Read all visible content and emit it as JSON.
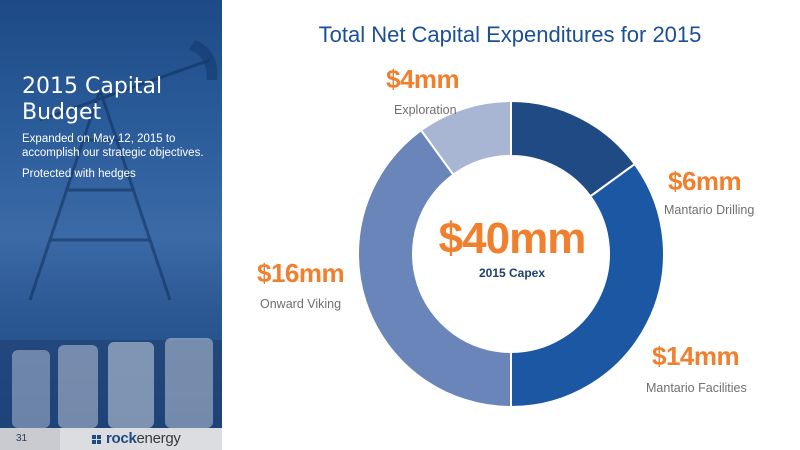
{
  "sidebar": {
    "title": "2015 Capital Budget",
    "bullets": [
      "Expanded on May 12, 2015 to accomplish our strategic objectives.",
      "Protected with hedges"
    ]
  },
  "footer": {
    "page_number": "31",
    "logo_part1": "rock",
    "logo_part2": "energy"
  },
  "colors": {
    "title": "#1b4f96",
    "value_labels": "#f07f2e",
    "category_labels": "#6f6f6f"
  },
  "chart_data": {
    "type": "pie",
    "variant": "donut",
    "title": "Total Net Capital Expenditures for 2015",
    "center_value": "$40mm",
    "center_label": "2015 Capex",
    "units": "$mm",
    "start_angle_deg": 0,
    "direction": "clockwise",
    "slices": [
      {
        "name": "Mantario Drilling",
        "value": 6,
        "label": "$6mm",
        "color": "#1f4a84"
      },
      {
        "name": "Mantario Facilities",
        "value": 14,
        "label": "$14mm",
        "color": "#1b57a3"
      },
      {
        "name": "Onward Viking",
        "value": 16,
        "label": "$16mm",
        "color": "#6a85b9"
      },
      {
        "name": "Exploration",
        "value": 4,
        "label": "$4mm",
        "color": "#a8b6d3"
      }
    ]
  }
}
